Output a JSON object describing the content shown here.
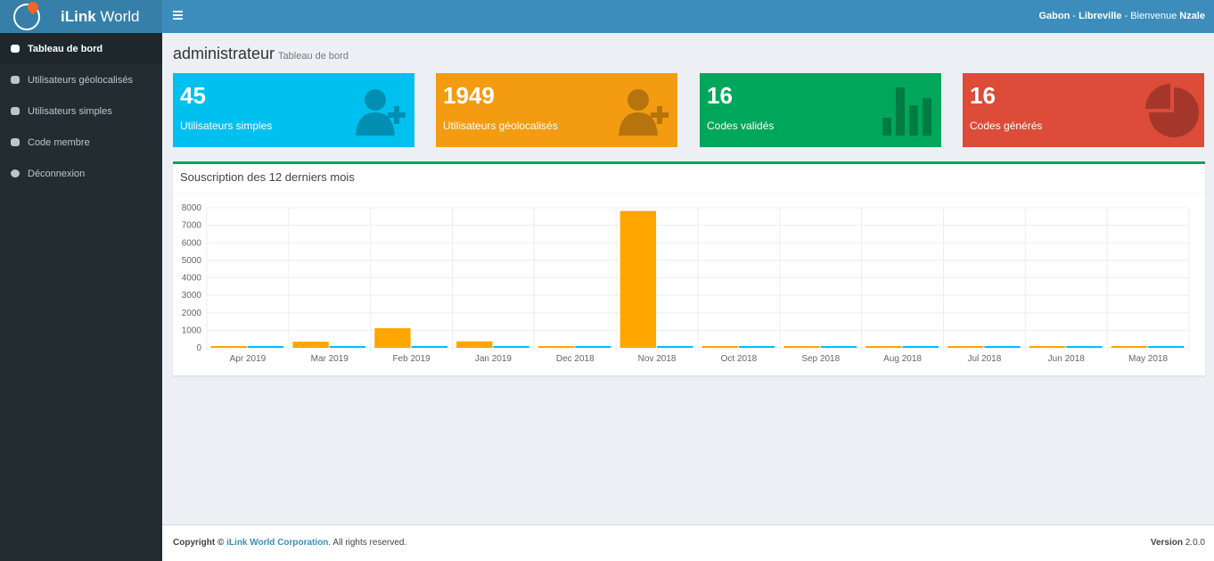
{
  "brand": {
    "bold": "iLink",
    "rest": " World"
  },
  "topbar": {
    "country": "Gabon",
    "sep1": " - ",
    "city": "Libreville",
    "sep2": " - Bienvenue ",
    "user": "Nzale"
  },
  "sidebar": {
    "items": [
      {
        "label": "Tableau de bord",
        "icon": "dashboard-icon",
        "active": true
      },
      {
        "label": "Utilisateurs géolocalisés",
        "icon": "users-icon"
      },
      {
        "label": "Utilisateurs simples",
        "icon": "users-icon"
      },
      {
        "label": "Code membre",
        "icon": "database-icon"
      },
      {
        "label": "Déconnexion",
        "icon": "power-icon"
      }
    ]
  },
  "page": {
    "title": "administrateur",
    "subtitle": "Tableau de bord"
  },
  "stats": [
    {
      "value": "45",
      "label": "Utilisateurs simples",
      "color": "#00c0ef",
      "icon": "user-plus-icon"
    },
    {
      "value": "1949",
      "label": "Utilisateurs géolocalisés",
      "color": "#f39c12",
      "icon": "user-plus-icon"
    },
    {
      "value": "16",
      "label": "Codes validés",
      "color": "#00a65a",
      "icon": "bar-chart-icon"
    },
    {
      "value": "16",
      "label": "Codes générés",
      "color": "#dd4b39",
      "icon": "pie-chart-icon"
    }
  ],
  "panel": {
    "title": "Souscription des 12 derniers mois"
  },
  "chart_data": {
    "type": "bar",
    "categories": [
      "Apr 2019",
      "Mar 2019",
      "Feb 2019",
      "Jan 2019",
      "Dec 2018",
      "Nov 2018",
      "Oct 2018",
      "Sep 2018",
      "Aug 2018",
      "Jul 2018",
      "Jun 2018",
      "May 2018"
    ],
    "series": [
      {
        "color": "#ffa500",
        "values": [
          0,
          350,
          1120,
          370,
          0,
          7820,
          0,
          0,
          0,
          0,
          0,
          0
        ]
      },
      {
        "color": "#00bfff",
        "values": [
          0,
          0,
          0,
          0,
          0,
          0,
          0,
          0,
          0,
          0,
          0,
          0
        ]
      }
    ],
    "ylim": [
      0,
      8000
    ],
    "yticks": [
      0,
      1000,
      2000,
      3000,
      4000,
      5000,
      6000,
      7000,
      8000
    ],
    "grid": true
  },
  "footer": {
    "copyright": "Copyright © ",
    "company": "iLink World Corporation",
    "rights": ". All rights reserved.",
    "version_label": "Version",
    "version": " 2.0.0"
  }
}
